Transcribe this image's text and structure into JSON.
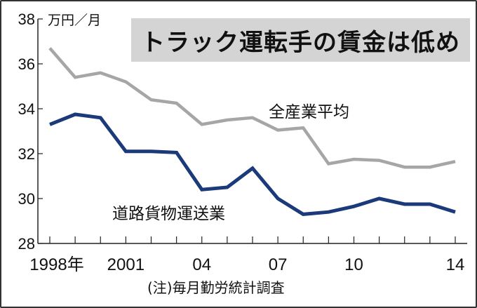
{
  "chart_data": {
    "type": "line",
    "title": "トラック運転手の賃金は低め",
    "ylabel": "万円／月",
    "xlabel": "",
    "note": "(注)毎月勤労統計調査",
    "ylim": [
      28,
      38
    ],
    "yticks": [
      28,
      30,
      32,
      34,
      36,
      38
    ],
    "xlim": [
      1998,
      2014
    ],
    "x": [
      1998,
      1999,
      2000,
      2001,
      2002,
      2003,
      2004,
      2005,
      2006,
      2007,
      2008,
      2009,
      2010,
      2011,
      2012,
      2013,
      2014
    ],
    "xtick_labels": [
      {
        "x": 1998,
        "label": "1998年"
      },
      {
        "x": 2001,
        "label": "2001"
      },
      {
        "x": 2004,
        "label": "04"
      },
      {
        "x": 2007,
        "label": "07"
      },
      {
        "x": 2010,
        "label": "10"
      },
      {
        "x": 2014,
        "label": "14"
      }
    ],
    "grid": false,
    "series": [
      {
        "name": "全産業平均",
        "color": "#a6a6a6",
        "values": [
          36.7,
          35.4,
          35.6,
          35.2,
          34.4,
          34.25,
          33.3,
          33.5,
          33.6,
          33.05,
          33.15,
          31.55,
          31.75,
          31.7,
          31.4,
          31.4,
          31.65
        ]
      },
      {
        "name": "道路貨物運送業",
        "color": "#1b3a7a",
        "values": [
          33.3,
          33.75,
          33.6,
          32.1,
          32.1,
          32.05,
          30.4,
          30.5,
          31.35,
          30.0,
          29.3,
          29.4,
          29.65,
          30.0,
          29.75,
          29.75,
          29.4
        ]
      }
    ]
  }
}
